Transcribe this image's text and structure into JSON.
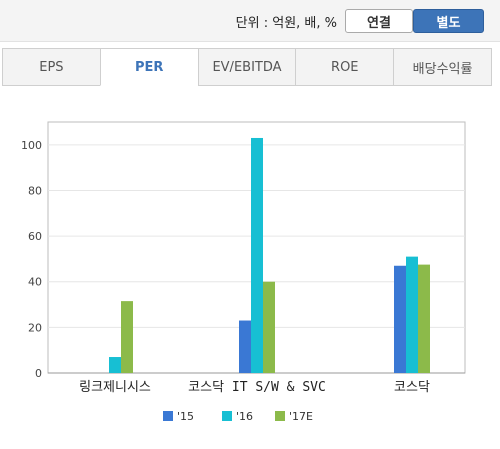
{
  "header": {
    "unit_text": "단위 : 억원, 배, %",
    "toggle": {
      "consolidated": "연결",
      "separate": "별도",
      "selected": "separate"
    }
  },
  "tabs": [
    {
      "label": "EPS",
      "active": false
    },
    {
      "label": "PER",
      "active": true
    },
    {
      "label": "EV/EBITDA",
      "active": false
    },
    {
      "label": "ROE",
      "active": false
    },
    {
      "label": "배당수익률",
      "active": false
    }
  ],
  "chart_data": {
    "type": "bar",
    "categories": [
      "링크제니시스",
      "코스닥 IT S/W & SVC",
      "코스닥"
    ],
    "series": [
      {
        "name": "'15",
        "color": "#3a78d4",
        "values": [
          null,
          23,
          47
        ]
      },
      {
        "name": "'16",
        "color": "#17bfd3",
        "values": [
          7,
          103,
          51
        ]
      },
      {
        "name": "'17E",
        "color": "#8cba4a",
        "values": [
          31.5,
          40,
          47.5
        ]
      }
    ],
    "ylim": [
      0,
      110
    ],
    "yticks": [
      0,
      20,
      40,
      60,
      80,
      100
    ],
    "grid": true,
    "legend": "bottom",
    "title": "",
    "xlabel": "",
    "ylabel": ""
  }
}
